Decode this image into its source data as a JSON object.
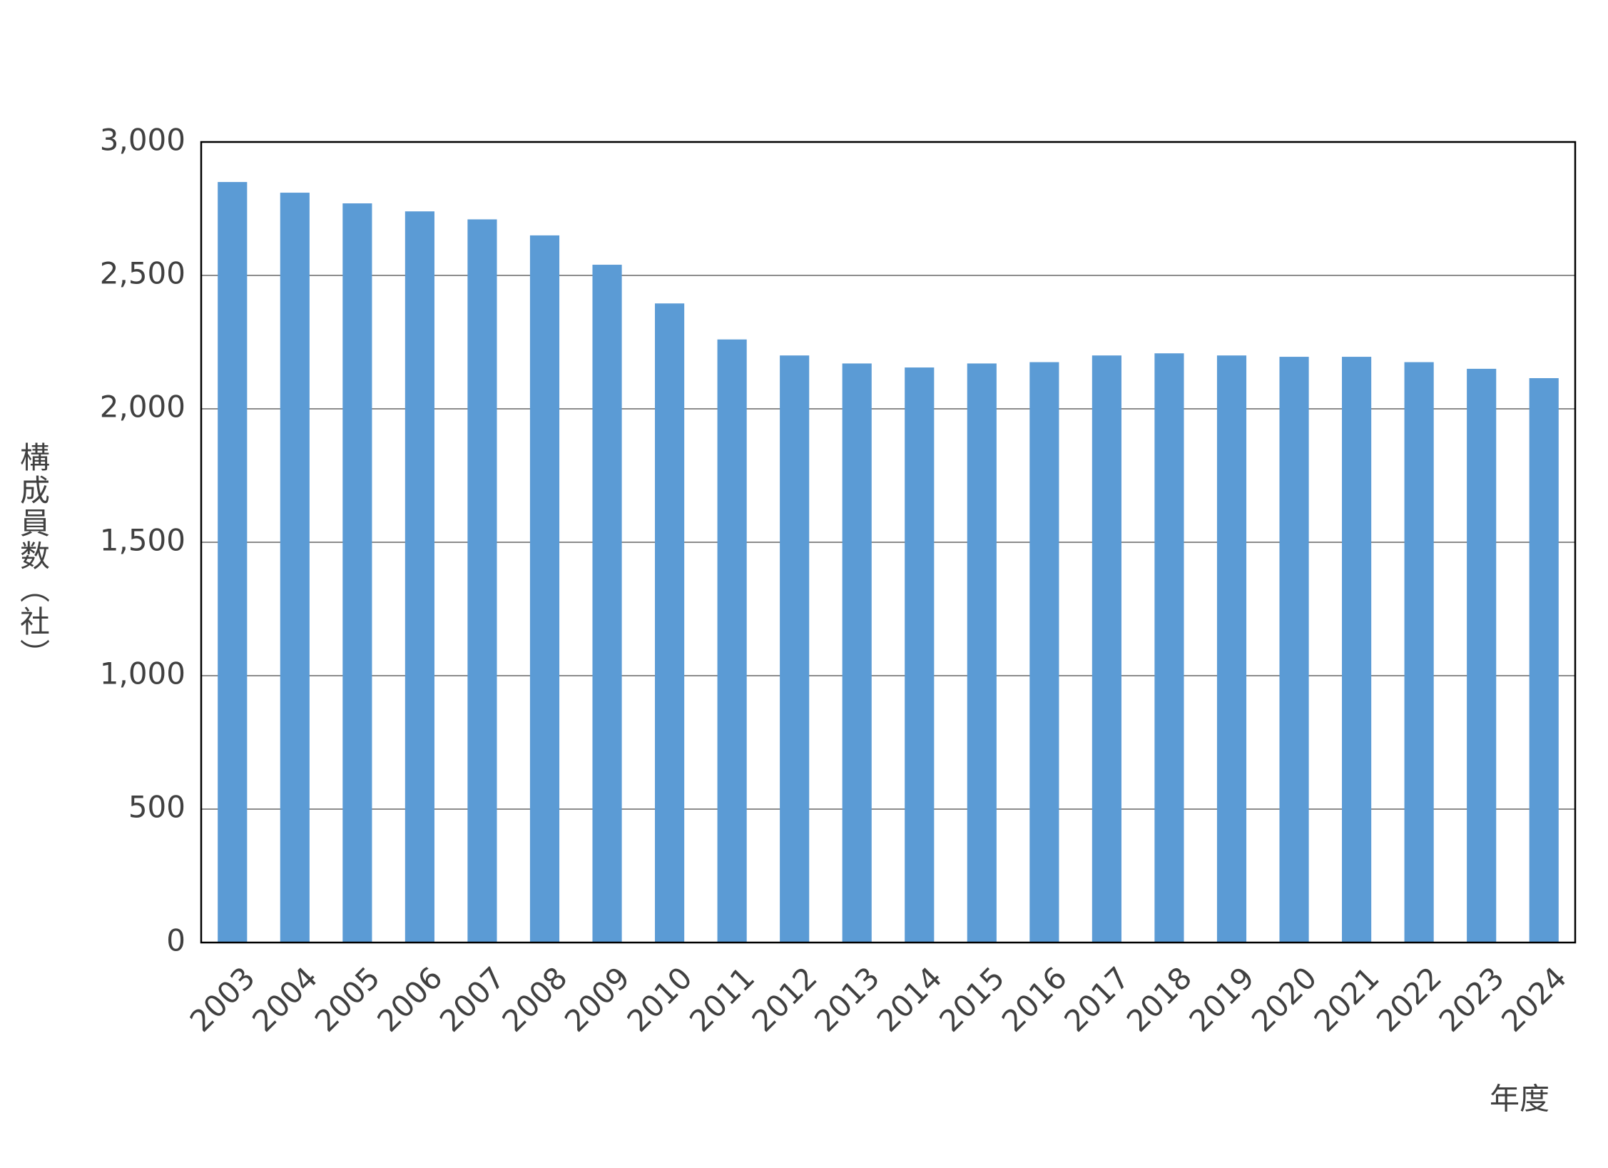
{
  "chart_data": {
    "type": "bar",
    "y_label": "構成員数（社）",
    "x_label": "年度",
    "categories": [
      "2003",
      "2004",
      "2005",
      "2006",
      "2007",
      "2008",
      "2009",
      "2010",
      "2011",
      "2012",
      "2013",
      "2014",
      "2015",
      "2016",
      "2017",
      "2018",
      "2019",
      "2020",
      "2021",
      "2022",
      "2023",
      "2024"
    ],
    "values": [
      2850,
      2810,
      2770,
      2740,
      2710,
      2650,
      2540,
      2395,
      2260,
      2200,
      2170,
      2155,
      2170,
      2175,
      2200,
      2208,
      2200,
      2195,
      2195,
      2175,
      2150,
      2115
    ],
    "color": "#5b9bd5",
    "ylim": [
      0,
      3000
    ],
    "yticks": [
      0,
      500,
      {
        "value": 1000,
        "label": "1,000"
      },
      {
        "value": 1500,
        "label": "1,500"
      },
      {
        "value": 2000,
        "label": "2,000"
      },
      {
        "value": 2500,
        "label": "2,500"
      },
      {
        "value": 3000,
        "label": "3,000"
      }
    ],
    "grid": true
  }
}
